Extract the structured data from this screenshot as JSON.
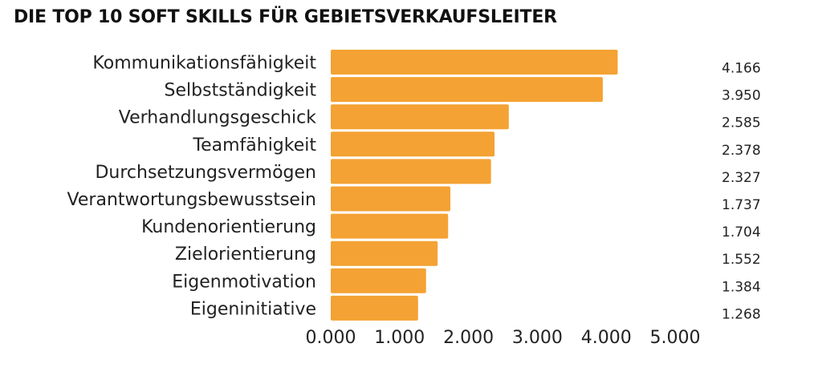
{
  "chart_data": {
    "type": "bar",
    "orientation": "horizontal",
    "title": "DIE TOP 10 SOFT SKILLS FÜR GEBIETSVERKAUFSLEITER",
    "categories": [
      "Kommunikationsfähigkeit",
      "Selbstständigkeit",
      "Verhandlungsgeschick",
      "Teamfähigkeit",
      "Durchsetzungsvermögen",
      "Verantwortungsbewusstsein",
      "Kundenorientierung",
      "Zielorientierung",
      "Eigenmotivation",
      "Eigeninitiative"
    ],
    "values": [
      4166,
      3950,
      2585,
      2378,
      2327,
      1737,
      1704,
      1552,
      1384,
      1268
    ],
    "value_labels": [
      "4.166",
      "3.950",
      "2.585",
      "2.378",
      "2.327",
      "1.737",
      "1.704",
      "1.552",
      "1.384",
      "1.268"
    ],
    "xlim": [
      0,
      5000
    ],
    "xticks": [
      0,
      1000,
      2000,
      3000,
      4000,
      5000
    ],
    "xtick_labels": [
      "0.000",
      "1.000",
      "2.000",
      "3.000",
      "4.000",
      "5.000"
    ],
    "xlabel": "",
    "ylabel": "",
    "grid": false,
    "bar_color": "#F4A233"
  }
}
